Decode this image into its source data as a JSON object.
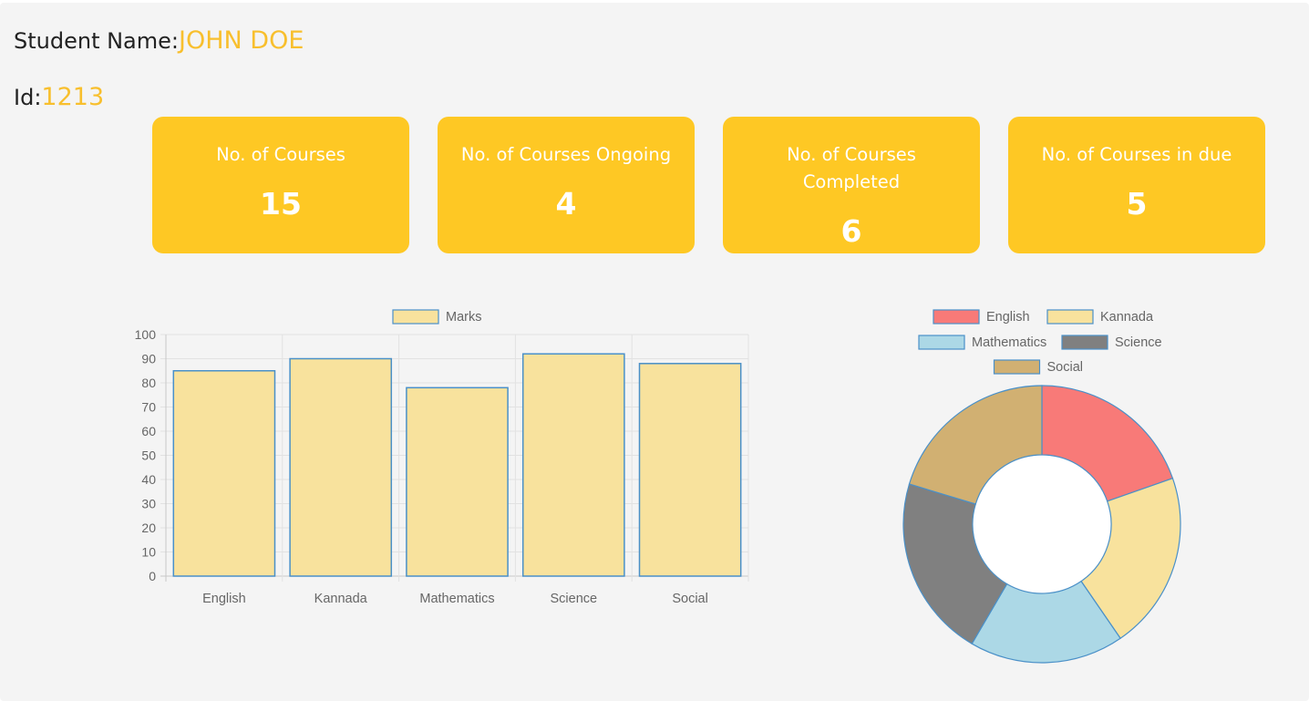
{
  "student": {
    "name_label": "Student Name:",
    "name_value": "JOHN DOE",
    "id_label": "Id:",
    "id_value": "1213"
  },
  "cards": [
    {
      "title": "No. of Courses",
      "value": "15"
    },
    {
      "title": "No. of Courses Ongoing",
      "value": "4"
    },
    {
      "title": "No. of Courses Completed",
      "value": "6"
    },
    {
      "title": "No. of Courses in due",
      "value": "5"
    }
  ],
  "colors": {
    "accent": "#fec824",
    "name_highlight": "#f8bf2d",
    "bar_fill": "#f8e29d",
    "bar_border": "#4a90c8"
  },
  "chart_data": [
    {
      "type": "bar",
      "categories": [
        "English",
        "Kannada",
        "Mathematics",
        "Science",
        "Social"
      ],
      "series": [
        {
          "name": "Marks",
          "values": [
            85,
            90,
            78,
            92,
            88
          ]
        }
      ],
      "ylim": [
        0,
        100
      ],
      "yticks": [
        0,
        10,
        20,
        30,
        40,
        50,
        60,
        70,
        80,
        90,
        100
      ],
      "grid": true,
      "legend": "top"
    },
    {
      "type": "pie",
      "variant": "doughnut",
      "categories": [
        "English",
        "Kannada",
        "Mathematics",
        "Science",
        "Social"
      ],
      "values": [
        85,
        90,
        78,
        92,
        88
      ],
      "colors": [
        "#f87a78",
        "#f8e29d",
        "#acd8e6",
        "#808080",
        "#d1b072"
      ],
      "legend": "top"
    }
  ]
}
